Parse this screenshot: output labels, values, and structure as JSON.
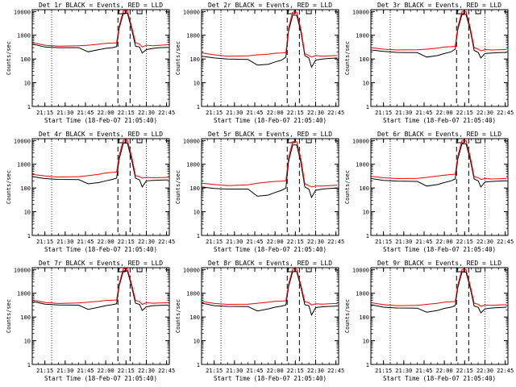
{
  "figure": {
    "background": "#ffffff",
    "color_events": "#000000",
    "color_lld": "#ff0000",
    "ylabel": "Counts/sec",
    "xlabel": "Start Time (18-Feb-07 21:05:40)"
  },
  "chart_data": [
    {
      "type": "line",
      "title": "Det 1r BLACK = Events, RED = LLD",
      "x_ticks": [
        "21:15",
        "21:30",
        "21:45",
        "22:00",
        "22:15",
        "22:30",
        "22:45"
      ],
      "y_ticks": [
        "1",
        "10",
        "100",
        "1000",
        "10000"
      ],
      "yscale": "log",
      "ylim": [
        1,
        12000
      ],
      "xlim": [
        "21:05:40",
        "22:47:00"
      ],
      "x": [
        "21:06",
        "21:15",
        "21:25",
        "21:40",
        "21:47",
        "21:55",
        "22:00",
        "22:05",
        "22:08",
        "22:10",
        "22:13",
        "22:16",
        "22:19",
        "22:22",
        "22:25",
        "22:27",
        "22:30",
        "22:35",
        "22:40",
        "22:46"
      ],
      "series": [
        {
          "name": "Events",
          "values": [
            420,
            320,
            300,
            300,
            200,
            250,
            280,
            300,
            330,
            2000,
            8500,
            8500,
            2000,
            350,
            320,
            180,
            250,
            280,
            300,
            310
          ]
        },
        {
          "name": "LLD",
          "values": [
            480,
            380,
            350,
            360,
            380,
            420,
            460,
            470,
            480,
            2500,
            11000,
            11000,
            2500,
            480,
            420,
            320,
            380,
            360,
            380,
            400
          ]
        }
      ]
    },
    {
      "type": "line",
      "title": "Det 2r BLACK = Events, RED = LLD",
      "x_ticks": [
        "21:15",
        "21:30",
        "21:45",
        "22:00",
        "22:15",
        "22:30",
        "22:45"
      ],
      "y_ticks": [
        "1",
        "10",
        "100",
        "1000",
        "10000"
      ],
      "yscale": "log",
      "ylim": [
        1,
        12000
      ],
      "xlim": [
        "21:05:40",
        "22:47:00"
      ],
      "x": [
        "21:06",
        "21:15",
        "21:25",
        "21:40",
        "21:47",
        "21:55",
        "22:00",
        "22:05",
        "22:08",
        "22:10",
        "22:13",
        "22:16",
        "22:19",
        "22:22",
        "22:25",
        "22:27",
        "22:30",
        "22:35",
        "22:40",
        "22:46"
      ],
      "series": [
        {
          "name": "Events",
          "values": [
            130,
            110,
            100,
            95,
            55,
            60,
            75,
            90,
            120,
            1500,
            7000,
            7000,
            1500,
            140,
            110,
            45,
            90,
            100,
            105,
            110
          ]
        },
        {
          "name": "LLD",
          "values": [
            180,
            150,
            130,
            135,
            150,
            160,
            175,
            180,
            185,
            2000,
            9500,
            9500,
            2000,
            170,
            140,
            120,
            140,
            130,
            135,
            140
          ]
        }
      ]
    },
    {
      "type": "line",
      "title": "Det 3r BLACK = Events, RED = LLD",
      "x_ticks": [
        "21:15",
        "21:30",
        "21:45",
        "22:00",
        "22:15",
        "22:30",
        "22:45"
      ],
      "y_ticks": [
        "1",
        "10",
        "100",
        "1000",
        "10000"
      ],
      "yscale": "log",
      "ylim": [
        1,
        12000
      ],
      "xlim": [
        "21:05:40",
        "22:47:00"
      ],
      "x": [
        "21:06",
        "21:15",
        "21:25",
        "21:40",
        "21:47",
        "21:55",
        "22:00",
        "22:05",
        "22:08",
        "22:10",
        "22:13",
        "22:16",
        "22:19",
        "22:22",
        "22:25",
        "22:27",
        "22:30",
        "22:35",
        "22:40",
        "22:46"
      ],
      "series": [
        {
          "name": "Events",
          "values": [
            240,
            210,
            190,
            185,
            120,
            140,
            170,
            200,
            260,
            1800,
            7500,
            7500,
            1800,
            230,
            190,
            110,
            170,
            180,
            185,
            190
          ]
        },
        {
          "name": "LLD",
          "values": [
            300,
            260,
            240,
            245,
            260,
            290,
            320,
            330,
            340,
            2300,
            10000,
            10000,
            2300,
            300,
            260,
            220,
            250,
            240,
            245,
            250
          ]
        }
      ]
    },
    {
      "type": "line",
      "title": "Det 4r BLACK = Events, RED = LLD",
      "x_ticks": [
        "21:15",
        "21:30",
        "21:45",
        "22:00",
        "22:15",
        "22:30",
        "22:45"
      ],
      "y_ticks": [
        "1",
        "10",
        "100",
        "1000",
        "10000"
      ],
      "yscale": "log",
      "ylim": [
        1,
        12000
      ],
      "xlim": [
        "21:05:40",
        "22:47:00"
      ],
      "x": [
        "21:06",
        "21:15",
        "21:25",
        "21:40",
        "21:47",
        "21:55",
        "22:00",
        "22:05",
        "22:08",
        "22:10",
        "22:13",
        "22:16",
        "22:19",
        "22:22",
        "22:25",
        "22:27",
        "22:30",
        "22:35",
        "22:40",
        "22:46"
      ],
      "series": [
        {
          "name": "Events",
          "values": [
            300,
            250,
            230,
            225,
            150,
            170,
            200,
            230,
            260,
            1700,
            7800,
            7800,
            1700,
            260,
            220,
            110,
            200,
            210,
            215,
            220
          ]
        },
        {
          "name": "LLD",
          "values": [
            370,
            320,
            290,
            300,
            330,
            380,
            430,
            460,
            470,
            2400,
            10500,
            10500,
            2400,
            330,
            300,
            260,
            280,
            270,
            275,
            280
          ]
        }
      ]
    },
    {
      "type": "line",
      "title": "Det 5r BLACK = Events, RED = LLD",
      "x_ticks": [
        "21:15",
        "21:30",
        "21:45",
        "22:00",
        "22:15",
        "22:30",
        "22:45"
      ],
      "y_ticks": [
        "1",
        "10",
        "100",
        "1000",
        "10000"
      ],
      "yscale": "log",
      "ylim": [
        1,
        12000
      ],
      "xlim": [
        "21:05:40",
        "22:47:00"
      ],
      "x": [
        "21:06",
        "21:15",
        "21:25",
        "21:40",
        "21:47",
        "21:55",
        "22:00",
        "22:05",
        "22:08",
        "22:10",
        "22:13",
        "22:16",
        "22:19",
        "22:22",
        "22:25",
        "22:27",
        "22:30",
        "22:35",
        "22:40",
        "22:46"
      ],
      "series": [
        {
          "name": "Events",
          "values": [
            110,
            95,
            90,
            90,
            45,
            50,
            65,
            80,
            100,
            1300,
            6500,
            6500,
            1300,
            110,
            90,
            40,
            80,
            90,
            95,
            100
          ]
        },
        {
          "name": "LLD",
          "values": [
            160,
            140,
            125,
            135,
            160,
            180,
            190,
            195,
            200,
            1900,
            9000,
            9000,
            1900,
            150,
            125,
            110,
            120,
            120,
            125,
            130
          ]
        }
      ]
    },
    {
      "type": "line",
      "title": "Det 6r BLACK = Events, RED = LLD",
      "x_ticks": [
        "21:15",
        "21:30",
        "21:45",
        "22:00",
        "22:15",
        "22:30",
        "22:45"
      ],
      "y_ticks": [
        "1",
        "10",
        "100",
        "1000",
        "10000"
      ],
      "yscale": "log",
      "ylim": [
        1,
        12000
      ],
      "xlim": [
        "21:05:40",
        "22:47:00"
      ],
      "x": [
        "21:06",
        "21:15",
        "21:25",
        "21:40",
        "21:47",
        "21:55",
        "22:00",
        "22:05",
        "22:08",
        "22:10",
        "22:13",
        "22:16",
        "22:19",
        "22:22",
        "22:25",
        "22:27",
        "22:30",
        "22:35",
        "22:40",
        "22:46"
      ],
      "series": [
        {
          "name": "Events",
          "values": [
            250,
            210,
            195,
            190,
            120,
            140,
            170,
            200,
            240,
            1700,
            7400,
            7400,
            1700,
            240,
            200,
            110,
            180,
            190,
            195,
            200
          ]
        },
        {
          "name": "LLD",
          "values": [
            310,
            270,
            250,
            255,
            280,
            320,
            350,
            370,
            380,
            2300,
            10000,
            10000,
            2300,
            300,
            270,
            230,
            250,
            240,
            245,
            250
          ]
        }
      ]
    },
    {
      "type": "line",
      "title": "Det 7r BLACK = Events, RED = LLD",
      "x_ticks": [
        "21:15",
        "21:30",
        "21:45",
        "22:00",
        "22:15",
        "22:30",
        "22:45"
      ],
      "y_ticks": [
        "1",
        "10",
        "100",
        "1000",
        "10000"
      ],
      "yscale": "log",
      "ylim": [
        1,
        12000
      ],
      "xlim": [
        "21:05:40",
        "22:47:00"
      ],
      "x": [
        "21:06",
        "21:15",
        "21:25",
        "21:40",
        "21:47",
        "21:55",
        "22:00",
        "22:05",
        "22:08",
        "22:10",
        "22:13",
        "22:16",
        "22:19",
        "22:22",
        "22:25",
        "22:27",
        "22:30",
        "22:35",
        "22:40",
        "22:46"
      ],
      "series": [
        {
          "name": "Events",
          "values": [
            450,
            350,
            320,
            315,
            210,
            260,
            300,
            330,
            360,
            2100,
            8800,
            8800,
            2100,
            380,
            340,
            190,
            270,
            300,
            310,
            320
          ]
        },
        {
          "name": "LLD",
          "values": [
            520,
            410,
            370,
            390,
            420,
            460,
            500,
            510,
            520,
            2600,
            11000,
            11000,
            2600,
            500,
            440,
            340,
            400,
            380,
            390,
            400
          ]
        }
      ]
    },
    {
      "type": "line",
      "title": "Det 8r BLACK = Events, RED = LLD",
      "x_ticks": [
        "21:15",
        "21:30",
        "21:45",
        "22:00",
        "22:15",
        "22:30",
        "22:45"
      ],
      "y_ticks": [
        "1",
        "10",
        "100",
        "1000",
        "10000"
      ],
      "yscale": "log",
      "ylim": [
        1,
        12000
      ],
      "xlim": [
        "21:05:40",
        "22:47:00"
      ],
      "x": [
        "21:06",
        "21:15",
        "21:25",
        "21:40",
        "21:47",
        "21:55",
        "22:00",
        "22:05",
        "22:08",
        "22:10",
        "22:13",
        "22:16",
        "22:19",
        "22:22",
        "22:25",
        "22:27",
        "22:30",
        "22:35",
        "22:40",
        "22:46"
      ],
      "series": [
        {
          "name": "Events",
          "values": [
            380,
            300,
            280,
            275,
            180,
            220,
            260,
            290,
            320,
            1900,
            8200,
            8200,
            1900,
            330,
            300,
            120,
            250,
            270,
            280,
            290
          ]
        },
        {
          "name": "LLD",
          "values": [
            450,
            370,
            340,
            350,
            380,
            420,
            460,
            470,
            480,
            2400,
            10500,
            10500,
            2400,
            440,
            400,
            320,
            360,
            350,
            360,
            370
          ]
        }
      ]
    },
    {
      "type": "line",
      "title": "Det 9r BLACK = Events, RED = LLD",
      "x_ticks": [
        "21:15",
        "21:30",
        "21:45",
        "22:00",
        "22:15",
        "22:30",
        "22:45"
      ],
      "y_ticks": [
        "1",
        "10",
        "100",
        "1000",
        "10000"
      ],
      "yscale": "log",
      "ylim": [
        1,
        12000
      ],
      "xlim": [
        "21:05:40",
        "22:47:00"
      ],
      "x": [
        "21:06",
        "21:15",
        "21:25",
        "21:40",
        "21:47",
        "21:55",
        "22:00",
        "22:05",
        "22:08",
        "22:10",
        "22:13",
        "22:16",
        "22:19",
        "22:22",
        "22:25",
        "22:27",
        "22:30",
        "22:35",
        "22:40",
        "22:46"
      ],
      "series": [
        {
          "name": "Events",
          "values": [
            330,
            260,
            240,
            235,
            160,
            190,
            230,
            260,
            300,
            1800,
            7800,
            7800,
            1800,
            290,
            260,
            150,
            220,
            240,
            250,
            260
          ]
        },
        {
          "name": "LLD",
          "values": [
            400,
            330,
            300,
            310,
            340,
            380,
            420,
            440,
            450,
            2300,
            10000,
            10000,
            2300,
            380,
            340,
            280,
            320,
            310,
            320,
            330
          ]
        }
      ]
    }
  ]
}
